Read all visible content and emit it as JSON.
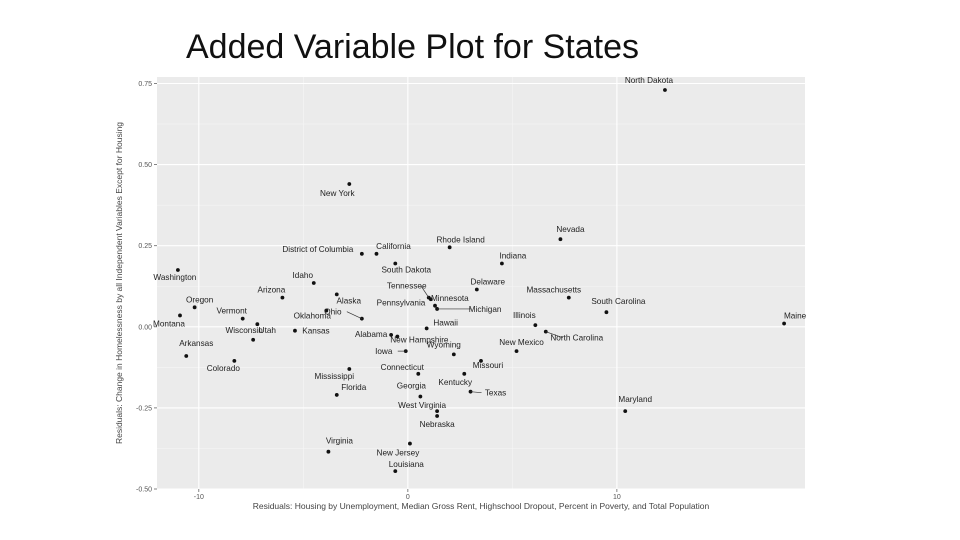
{
  "slide": {
    "title": "Added Variable Plot for States"
  },
  "chart_data": {
    "type": "scatter",
    "title": "Added Variable Plot for States",
    "xlabel": "Residuals: Housing by Unemployment, Median Gross Rent, Highschool Dropout, Percent in Poverty, and Total Population",
    "ylabel": "Residuals: Change in Homelessness by all Independent Variables Except for Housing",
    "xlim": [
      -12,
      19
    ],
    "ylim": [
      -0.5,
      0.77
    ],
    "x_ticks": [
      -10,
      0,
      10
    ],
    "y_ticks": [
      -0.5,
      -0.25,
      0.0,
      0.25,
      0.5,
      0.75
    ],
    "x_tick_labels": [
      "-10",
      "0",
      "10"
    ],
    "y_tick_labels": [
      "-0.50",
      "-0.25",
      "0.00",
      "0.25",
      "0.50",
      "0.75"
    ],
    "grid": true,
    "background": "#ebebeb",
    "point_color": "#111111",
    "points": [
      {
        "label": "North Dakota",
        "x": 12.3,
        "y": 0.73
      },
      {
        "label": "New York",
        "x": -2.8,
        "y": 0.44
      },
      {
        "label": "Nevada",
        "x": 7.3,
        "y": 0.27
      },
      {
        "label": "Rhode Island",
        "x": 2.0,
        "y": 0.245
      },
      {
        "label": "California",
        "x": -1.5,
        "y": 0.225
      },
      {
        "label": "District of Columbia",
        "x": -2.2,
        "y": 0.225
      },
      {
        "label": "South Dakota",
        "x": -0.6,
        "y": 0.195
      },
      {
        "label": "Indiana",
        "x": 4.5,
        "y": 0.195
      },
      {
        "label": "Washington",
        "x": -11.0,
        "y": 0.175
      },
      {
        "label": "Idaho",
        "x": -4.5,
        "y": 0.135
      },
      {
        "label": "Delaware",
        "x": 3.3,
        "y": 0.115
      },
      {
        "label": "Tennessee",
        "x": 1.0,
        "y": 0.09
      },
      {
        "label": "Minnesota",
        "x": 1.1,
        "y": 0.085
      },
      {
        "label": "Arizona",
        "x": -6.0,
        "y": 0.09
      },
      {
        "label": "Alaska",
        "x": -3.4,
        "y": 0.1
      },
      {
        "label": "Massachusetts",
        "x": 7.7,
        "y": 0.09
      },
      {
        "label": "Oregon",
        "x": -10.2,
        "y": 0.06
      },
      {
        "label": "Pennsylvania",
        "x": 1.3,
        "y": 0.065
      },
      {
        "label": "Michigan",
        "x": 1.4,
        "y": 0.055
      },
      {
        "label": "Oklahoma",
        "x": -3.9,
        "y": 0.05
      },
      {
        "label": "South Carolina",
        "x": 9.5,
        "y": 0.045
      },
      {
        "label": "Montana",
        "x": -10.9,
        "y": 0.035
      },
      {
        "label": "Ohio",
        "x": -2.2,
        "y": 0.025
      },
      {
        "label": "Vermont",
        "x": -7.9,
        "y": 0.025
      },
      {
        "label": "Maine",
        "x": 18.0,
        "y": 0.01
      },
      {
        "label": "Illinois",
        "x": 6.1,
        "y": 0.005
      },
      {
        "label": "Utah",
        "x": -7.2,
        "y": 0.008
      },
      {
        "label": "Hawaii",
        "x": 0.9,
        "y": -0.005
      },
      {
        "label": "Kansas",
        "x": -5.4,
        "y": -0.012
      },
      {
        "label": "North Carolina",
        "x": 6.6,
        "y": -0.015
      },
      {
        "label": "Alabama",
        "x": -0.8,
        "y": -0.025
      },
      {
        "label": "New Hampshire",
        "x": -0.5,
        "y": -0.03
      },
      {
        "label": "Wisconsin",
        "x": -7.4,
        "y": -0.04
      },
      {
        "label": "Iowa",
        "x": -0.1,
        "y": -0.075
      },
      {
        "label": "New Mexico",
        "x": 5.2,
        "y": -0.075
      },
      {
        "label": "Wyoming",
        "x": 2.2,
        "y": -0.085
      },
      {
        "label": "Arkansas",
        "x": -10.6,
        "y": -0.09
      },
      {
        "label": "Missouri",
        "x": 3.5,
        "y": -0.105
      },
      {
        "label": "Colorado",
        "x": -8.3,
        "y": -0.105
      },
      {
        "label": "Mississippi",
        "x": -2.8,
        "y": -0.13
      },
      {
        "label": "Connecticut",
        "x": 0.5,
        "y": -0.145
      },
      {
        "label": "Kentucky",
        "x": 2.7,
        "y": -0.145
      },
      {
        "label": "Texas",
        "x": 3.0,
        "y": -0.2
      },
      {
        "label": "Georgia",
        "x": 0.6,
        "y": -0.215
      },
      {
        "label": "Florida",
        "x": -3.4,
        "y": -0.21
      },
      {
        "label": "Maryland",
        "x": 10.4,
        "y": -0.26
      },
      {
        "label": "West Virginia",
        "x": 1.4,
        "y": -0.26
      },
      {
        "label": "Nebraska",
        "x": 1.4,
        "y": -0.275
      },
      {
        "label": "New Jersey",
        "x": 0.1,
        "y": -0.36
      },
      {
        "label": "Virginia",
        "x": -3.8,
        "y": -0.385
      },
      {
        "label": "Louisiana",
        "x": -0.6,
        "y": -0.445
      }
    ]
  }
}
